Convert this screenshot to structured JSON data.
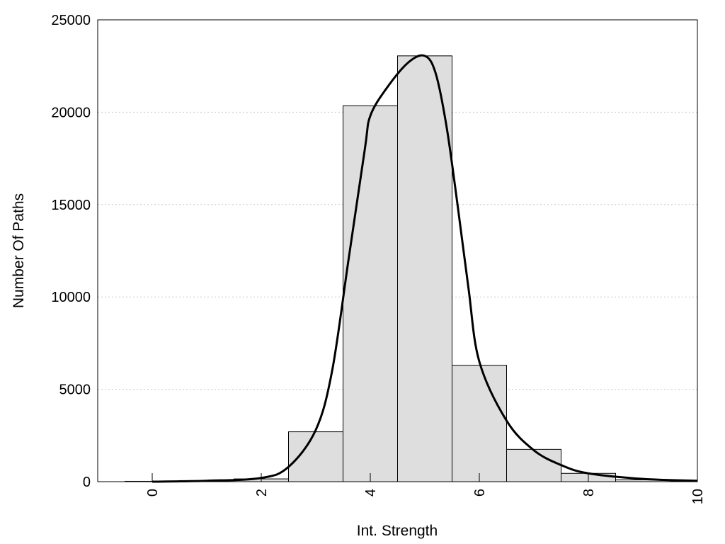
{
  "chart_data": {
    "type": "bar",
    "title": "",
    "xlabel": "Int. Strength",
    "ylabel": "Number Of Paths",
    "xlim": [
      -1,
      10
    ],
    "ylim": [
      0,
      25000
    ],
    "x_ticks": [
      0,
      2,
      4,
      6,
      8,
      10
    ],
    "y_ticks": [
      0,
      5000,
      10000,
      15000,
      20000,
      25000
    ],
    "grid": "horizontal dotted",
    "bin_width": 1,
    "bins": [
      {
        "x": 0,
        "value": 20
      },
      {
        "x": 1,
        "value": 60
      },
      {
        "x": 2,
        "value": 150
      },
      {
        "x": 3,
        "value": 2700
      },
      {
        "x": 4,
        "value": 20350
      },
      {
        "x": 5,
        "value": 23050
      },
      {
        "x": 6,
        "value": 6300
      },
      {
        "x": 7,
        "value": 1750
      },
      {
        "x": 8,
        "value": 450
      },
      {
        "x": 9,
        "value": 100
      },
      {
        "x": 10,
        "value": 40
      }
    ],
    "curve": [
      [
        0,
        0
      ],
      [
        1,
        50
      ],
      [
        2,
        200
      ],
      [
        2.5,
        800
      ],
      [
        3,
        2800
      ],
      [
        3.3,
        6000
      ],
      [
        3.6,
        12000
      ],
      [
        3.9,
        18000
      ],
      [
        4.0,
        19800
      ],
      [
        4.3,
        21300
      ],
      [
        4.7,
        22700
      ],
      [
        5.0,
        23050
      ],
      [
        5.2,
        22100
      ],
      [
        5.4,
        19200
      ],
      [
        5.6,
        15000
      ],
      [
        5.8,
        10500
      ],
      [
        6.0,
        6500
      ],
      [
        6.5,
        3300
      ],
      [
        7.0,
        1700
      ],
      [
        7.5,
        900
      ],
      [
        8.0,
        450
      ],
      [
        9.0,
        150
      ],
      [
        10.0,
        50
      ]
    ],
    "bar_fill": "#dedede",
    "bar_stroke": "#000000",
    "curve_color": "#000000"
  }
}
